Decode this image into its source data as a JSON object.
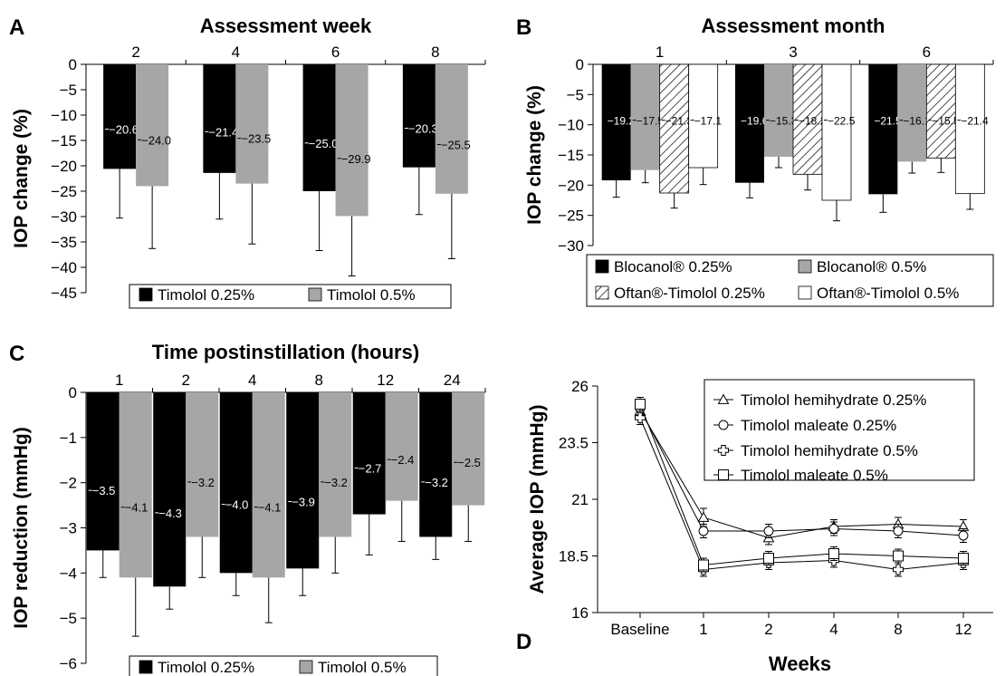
{
  "chart_data": [
    {
      "panel": "A",
      "type": "bar",
      "title": "Assessment week",
      "xlabel": "",
      "ylabel": "IOP change (%)",
      "categories": [
        "2",
        "4",
        "6",
        "8"
      ],
      "ylim": [
        -45,
        0
      ],
      "yticks": [
        0,
        -5,
        -10,
        -15,
        -20,
        -25,
        -30,
        -35,
        -40,
        -45
      ],
      "ytick_labels": [
        "0",
        "−5",
        "−10",
        "−15",
        "−20",
        "−25",
        "−30",
        "−35",
        "−40",
        "−45"
      ],
      "series": [
        {
          "name": "Timolol 0.25%",
          "color": "#000000",
          "values": [
            -20.6,
            -21.4,
            -25.0,
            -20.3
          ],
          "labels": [
            "−20.6",
            "−21.4",
            "−25.0",
            "−20.3"
          ],
          "err": [
            9.7,
            9.1,
            11.7,
            9.3
          ]
        },
        {
          "name": "Timolol 0.5%",
          "color": "#a6a6a6",
          "values": [
            -24.0,
            -23.5,
            -29.9,
            -25.5
          ],
          "labels": [
            "−24.0",
            "−23.5",
            "−29.9",
            "−25.5"
          ],
          "err": [
            12.3,
            11.9,
            11.8,
            12.8
          ]
        }
      ],
      "legend": "bottom",
      "grid": false
    },
    {
      "panel": "B",
      "type": "bar",
      "title": "Assessment month",
      "xlabel": "",
      "ylabel": "IOP change (%)",
      "categories": [
        "1",
        "3",
        "6"
      ],
      "ylim": [
        -30,
        0
      ],
      "yticks": [
        0,
        -5,
        -10,
        -15,
        -20,
        -25,
        -30
      ],
      "ytick_labels": [
        "0",
        "−5",
        "−10",
        "−15",
        "−20",
        "−25",
        "−30"
      ],
      "series": [
        {
          "name": "Blocanol® 0.25%",
          "color": "#000000",
          "fill": "solid",
          "values": [
            -19.2,
            -19.6,
            -21.5
          ],
          "labels": [
            "−19.2",
            "−19.6",
            "−21.5"
          ],
          "err": [
            2.8,
            2.5,
            3.0
          ]
        },
        {
          "name": "Blocanol® 0.5%",
          "color": "#a6a6a6",
          "fill": "solid",
          "values": [
            -17.5,
            -15.3,
            -16.1
          ],
          "labels": [
            "−17.5",
            "−15.3",
            "−16.1"
          ],
          "err": [
            2.1,
            1.8,
            1.9
          ]
        },
        {
          "name": "Oftan®-Timolol 0.25%",
          "color": "#000000",
          "fill": "hatch",
          "values": [
            -21.3,
            -18.2,
            -15.5
          ],
          "labels": [
            "−21.3",
            "−18.2",
            "−15.5"
          ],
          "err": [
            2.5,
            2.6,
            2.4
          ]
        },
        {
          "name": "Oftan®-Timolol  0.5%",
          "color": "#ffffff",
          "fill": "open",
          "values": [
            -17.1,
            -22.5,
            -21.4
          ],
          "labels": [
            "−17.1",
            "−22.5",
            "−21.4"
          ],
          "err": [
            2.8,
            3.4,
            2.6
          ]
        }
      ],
      "legend": "bottom",
      "grid": false
    },
    {
      "panel": "C",
      "type": "bar",
      "title": "Time postinstillation (hours)",
      "xlabel": "",
      "ylabel": "IOP reduction (mmHg)",
      "categories": [
        "1",
        "2",
        "4",
        "8",
        "12",
        "24"
      ],
      "ylim": [
        -6,
        0
      ],
      "yticks": [
        0,
        -1,
        -2,
        -3,
        -4,
        -5,
        -6
      ],
      "ytick_labels": [
        "0",
        "−1",
        "−2",
        "−3",
        "−4",
        "−5",
        "−6"
      ],
      "series": [
        {
          "name": "Timolol 0.25%",
          "color": "#000000",
          "values": [
            -3.5,
            -4.3,
            -4.0,
            -3.9,
            -2.7,
            -3.2
          ],
          "labels": [
            "−3.5",
            "−4.3",
            "−4.0",
            "−3.9",
            "−2.7",
            "−3.2"
          ],
          "err": [
            0.6,
            0.5,
            0.5,
            0.6,
            0.9,
            0.5
          ]
        },
        {
          "name": "Timolol 0.5%",
          "color": "#a6a6a6",
          "values": [
            -4.1,
            -3.2,
            -4.1,
            -3.2,
            -2.4,
            -2.5
          ],
          "labels": [
            "−4.1",
            "−3.2",
            "−4.1",
            "−3.2",
            "−2.4",
            "−2.5"
          ],
          "err": [
            1.3,
            0.9,
            1.0,
            0.8,
            0.9,
            0.8
          ]
        }
      ],
      "legend": "bottom",
      "grid": false
    },
    {
      "panel": "D",
      "type": "line",
      "title": "",
      "xlabel": "Weeks",
      "ylabel": "Average IOP (mmHg)",
      "x": [
        "Baseline",
        "1",
        "2",
        "4",
        "8",
        "12"
      ],
      "ylim": [
        16,
        26
      ],
      "yticks": [
        16,
        18.5,
        21,
        23.5,
        26
      ],
      "ytick_labels": [
        "16",
        "18.5",
        "21",
        "23.5",
        "26"
      ],
      "series": [
        {
          "name": "Timolol hemihydrate 0.25%",
          "marker": "triangle",
          "values": [
            24.9,
            20.2,
            19.3,
            19.8,
            19.9,
            19.8
          ],
          "err": [
            0.3,
            0.4,
            0.3,
            0.3,
            0.3,
            0.3
          ]
        },
        {
          "name": "Timolol maleate 0.25%",
          "marker": "circle",
          "values": [
            25.0,
            19.6,
            19.6,
            19.7,
            19.6,
            19.4
          ],
          "err": [
            0.3,
            0.3,
            0.3,
            0.3,
            0.3,
            0.3
          ]
        },
        {
          "name": "Timolol hemihydrate 0.5%",
          "marker": "cross",
          "values": [
            24.6,
            17.9,
            18.2,
            18.3,
            17.9,
            18.2
          ],
          "err": [
            0.3,
            0.3,
            0.3,
            0.3,
            0.3,
            0.3
          ]
        },
        {
          "name": "Timolol maleate 0.5%",
          "marker": "square",
          "values": [
            25.2,
            18.1,
            18.4,
            18.6,
            18.5,
            18.4
          ],
          "err": [
            0.3,
            0.3,
            0.3,
            0.3,
            0.3,
            0.3
          ]
        }
      ],
      "legend": "top-right",
      "grid": false
    }
  ]
}
